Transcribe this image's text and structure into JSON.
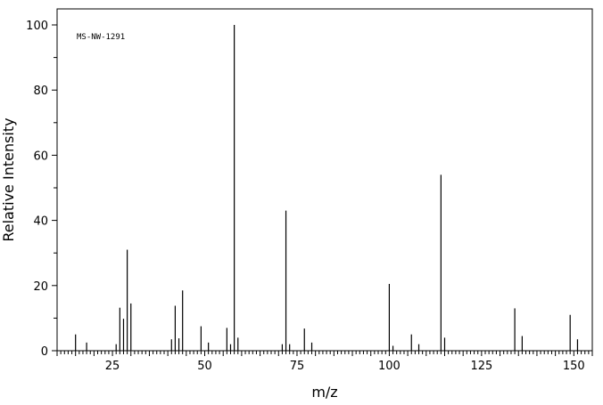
{
  "chart_data": {
    "type": "bar",
    "xlabel": "m/z",
    "ylabel": "Relative Intensity",
    "annotation": "MS-NW-1291",
    "xlim": [
      10,
      155
    ],
    "ylim": [
      0,
      100
    ],
    "x_ticks": [
      25,
      50,
      75,
      100,
      125,
      150
    ],
    "y_ticks": [
      0,
      20,
      40,
      60,
      80,
      100
    ],
    "grid": false,
    "peaks": [
      [
        15,
        5
      ],
      [
        18,
        2.5
      ],
      [
        26,
        2
      ],
      [
        27,
        13.2
      ],
      [
        28,
        9.8
      ],
      [
        29,
        31
      ],
      [
        30,
        14.5
      ],
      [
        41,
        3.5
      ],
      [
        42,
        13.8
      ],
      [
        43,
        3.8
      ],
      [
        44,
        18.5
      ],
      [
        49,
        7.5
      ],
      [
        51,
        2.5
      ],
      [
        56,
        7
      ],
      [
        57,
        2
      ],
      [
        58,
        100
      ],
      [
        59,
        4
      ],
      [
        71,
        2
      ],
      [
        72,
        43
      ],
      [
        73,
        2
      ],
      [
        77,
        6.8
      ],
      [
        79,
        2.5
      ],
      [
        100,
        20.5
      ],
      [
        101,
        1.5
      ],
      [
        106,
        5
      ],
      [
        108,
        2
      ],
      [
        114,
        54
      ],
      [
        115,
        4
      ],
      [
        134,
        13
      ],
      [
        136,
        4.5
      ],
      [
        149,
        11
      ],
      [
        151,
        3.5
      ]
    ]
  }
}
